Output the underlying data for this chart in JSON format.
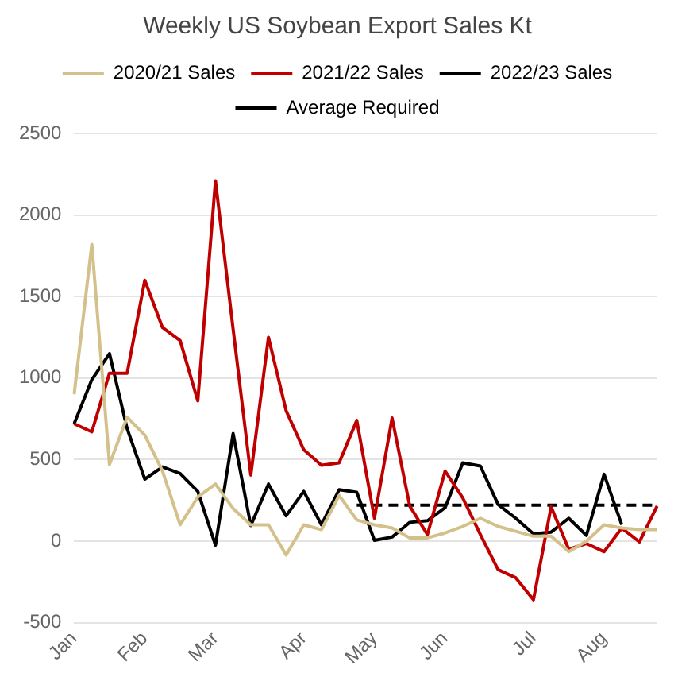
{
  "chart_data": {
    "type": "line",
    "title": "Weekly US Soybean Export Sales Kt",
    "categories": [
      "Jan",
      null,
      null,
      null,
      "Feb",
      null,
      null,
      null,
      "Mar",
      null,
      null,
      null,
      null,
      "Apr",
      null,
      null,
      null,
      "May",
      null,
      null,
      null,
      "Jun",
      null,
      null,
      null,
      null,
      "Jul",
      null,
      null,
      null,
      "Aug",
      null,
      null,
      null
    ],
    "series": [
      {
        "name": "2020/21 Sales",
        "color": "#d4c08a",
        "values": [
          900,
          1820,
          470,
          760,
          650,
          430,
          100,
          270,
          350,
          200,
          100,
          100,
          -85,
          100,
          70,
          280,
          130,
          100,
          80,
          20,
          20,
          50,
          90,
          140,
          90,
          60,
          30,
          30,
          -65,
          0,
          100,
          80,
          70,
          70
        ]
      },
      {
        "name": "2021/22 Sales",
        "color": "#c00000",
        "values": [
          720,
          670,
          1030,
          1030,
          1600,
          1310,
          1230,
          860,
          2210,
          1300,
          405,
          1250,
          800,
          560,
          465,
          480,
          740,
          140,
          755,
          215,
          40,
          430,
          265,
          40,
          -175,
          -225,
          -360,
          210,
          -50,
          -15,
          -65,
          80,
          -5,
          215
        ]
      },
      {
        "name": "2022/23 Sales",
        "color": "#000000",
        "values": [
          720,
          990,
          1150,
          690,
          380,
          455,
          415,
          305,
          -25,
          660,
          95,
          350,
          155,
          305,
          100,
          315,
          300,
          5,
          25,
          115,
          125,
          205,
          480,
          460,
          225,
          140,
          45,
          55,
          140,
          35,
          410,
          100,
          null,
          null
        ]
      },
      {
        "name": "Average Required",
        "color": "#000000",
        "line_style": "dashed",
        "values": [
          null,
          null,
          null,
          null,
          null,
          null,
          null,
          null,
          null,
          null,
          null,
          null,
          null,
          null,
          null,
          null,
          220,
          220,
          220,
          220,
          220,
          220,
          220,
          220,
          220,
          220,
          220,
          220,
          220,
          220,
          220,
          220,
          220,
          220
        ]
      }
    ],
    "ylim": [
      -500,
      2500
    ],
    "yticks": [
      -500,
      0,
      500,
      1000,
      1500,
      2000,
      2500
    ],
    "grid": "y",
    "legend": "top",
    "marker": "none",
    "line_style": "solid"
  }
}
